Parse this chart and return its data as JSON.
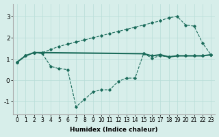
{
  "xlabel": "Humidex (Indice chaleur)",
  "background_color": "#d7eeea",
  "line_color": "#1a6b5a",
  "grid_color": "#b8ddd8",
  "xlim": [
    -0.5,
    23.5
  ],
  "ylim": [
    -1.6,
    3.6
  ],
  "yticks": [
    -1,
    0,
    1,
    2,
    3
  ],
  "xticks": [
    0,
    1,
    2,
    3,
    4,
    5,
    6,
    7,
    8,
    9,
    10,
    11,
    12,
    13,
    14,
    15,
    16,
    17,
    18,
    19,
    20,
    21,
    22,
    23
  ],
  "series1_x": [
    0,
    1,
    2,
    3,
    15,
    16,
    17,
    18,
    19,
    20,
    21,
    22,
    23
  ],
  "series1_y": [
    0.85,
    1.15,
    1.3,
    1.3,
    1.25,
    1.15,
    1.2,
    1.1,
    1.15,
    1.15,
    1.15,
    1.15,
    1.2
  ],
  "series2_x": [
    0,
    1,
    2,
    3,
    4,
    5,
    6,
    7,
    8,
    9,
    10,
    11,
    12,
    13,
    14,
    15,
    16,
    17,
    18,
    19,
    20,
    21,
    22,
    23
  ],
  "series2_y": [
    0.85,
    1.15,
    1.3,
    1.25,
    0.65,
    0.55,
    0.5,
    -1.25,
    -0.9,
    -0.55,
    -0.45,
    -0.45,
    -0.05,
    0.1,
    0.1,
    1.25,
    1.05,
    1.15,
    1.1,
    1.15,
    1.15,
    1.15,
    1.15,
    1.2
  ],
  "series3_x": [
    0,
    1,
    2,
    3,
    4,
    5,
    6,
    7,
    8,
    9,
    10,
    11,
    12,
    13,
    14,
    15,
    16,
    17,
    18,
    19,
    20,
    21,
    22,
    23
  ],
  "series3_y": [
    0.85,
    1.15,
    1.3,
    1.3,
    1.45,
    1.6,
    1.7,
    1.8,
    1.9,
    2.0,
    2.1,
    2.2,
    2.3,
    2.4,
    2.5,
    2.6,
    2.7,
    2.8,
    2.95,
    3.0,
    2.6,
    2.55,
    1.75,
    1.2
  ]
}
